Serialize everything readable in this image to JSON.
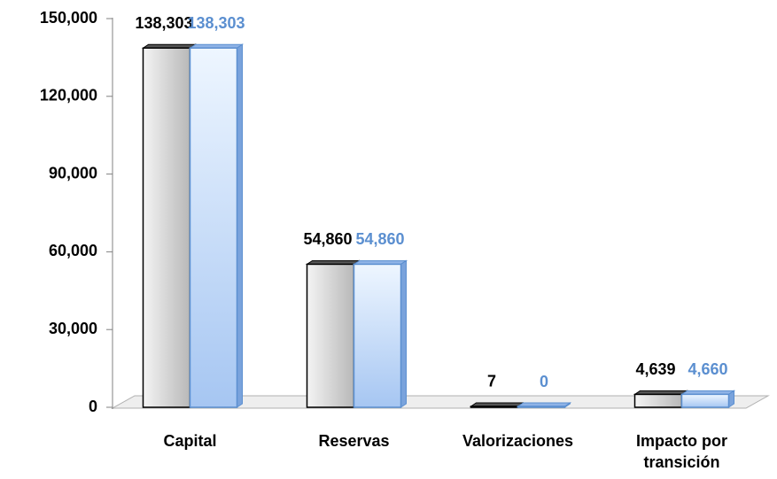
{
  "chart_data": {
    "type": "bar3d",
    "categories": [
      "Capital",
      "Reservas",
      "Valorizaciones",
      "Impacto por transición"
    ],
    "series": [
      {
        "color": "#c8c8c8",
        "edge_color": "#000000",
        "label_color": "#000000",
        "values": [
          138303,
          54860,
          7,
          4639
        ],
        "value_labels": [
          "138,303",
          "54,860",
          "7",
          "4,639"
        ]
      },
      {
        "color": "#b3d1f5",
        "edge_color": "#5b8fd0",
        "label_color": "#5b8fd0",
        "values": [
          138303,
          54860,
          0,
          4660
        ],
        "value_labels": [
          "138,303",
          "54,860",
          "0",
          "4,660"
        ]
      }
    ],
    "ylim": [
      0,
      150000
    ],
    "yticks": [
      0,
      {
        "value": 30000,
        "label": "30,000"
      },
      {
        "value": 60000,
        "label": "60,000"
      },
      {
        "value": 90000,
        "label": "90,000"
      },
      {
        "value": 120000,
        "label": "120,000"
      },
      {
        "value": 150000,
        "label": "150,000"
      }
    ],
    "grid": false
  }
}
